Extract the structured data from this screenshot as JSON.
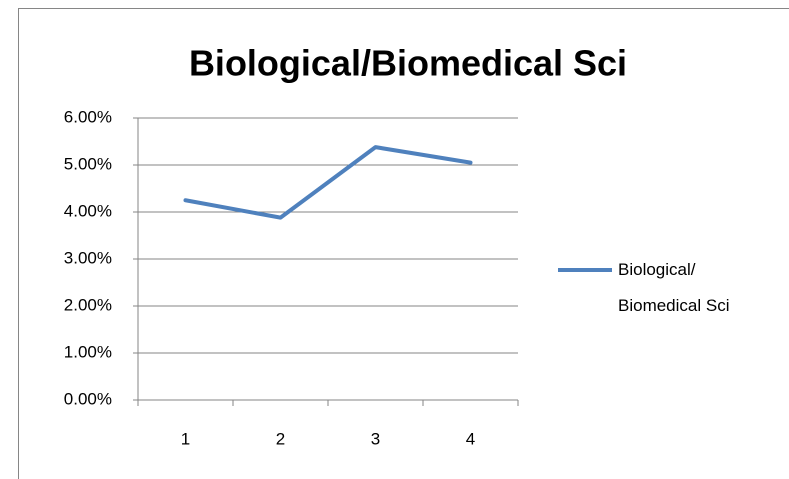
{
  "chart_data": {
    "type": "line",
    "title": "Biological/Biomedical Sci",
    "categories": [
      "1",
      "2",
      "3",
      "4"
    ],
    "series": [
      {
        "name": "Biological/Biomedical Sci",
        "color": "#4f81bd",
        "values": [
          4.25,
          3.88,
          5.38,
          5.05
        ]
      }
    ],
    "ylim": [
      0,
      6
    ],
    "yticks": [
      {
        "value": 0,
        "label": "0.00%"
      },
      {
        "value": 1,
        "label": "1.00%"
      },
      {
        "value": 2,
        "label": "2.00%"
      },
      {
        "value": 3,
        "label": "3.00%"
      },
      {
        "value": 4,
        "label": "4.00%"
      },
      {
        "value": 5,
        "label": "5.00%"
      },
      {
        "value": 6,
        "label": "6.00%"
      }
    ],
    "grid": true,
    "legend": "right"
  }
}
